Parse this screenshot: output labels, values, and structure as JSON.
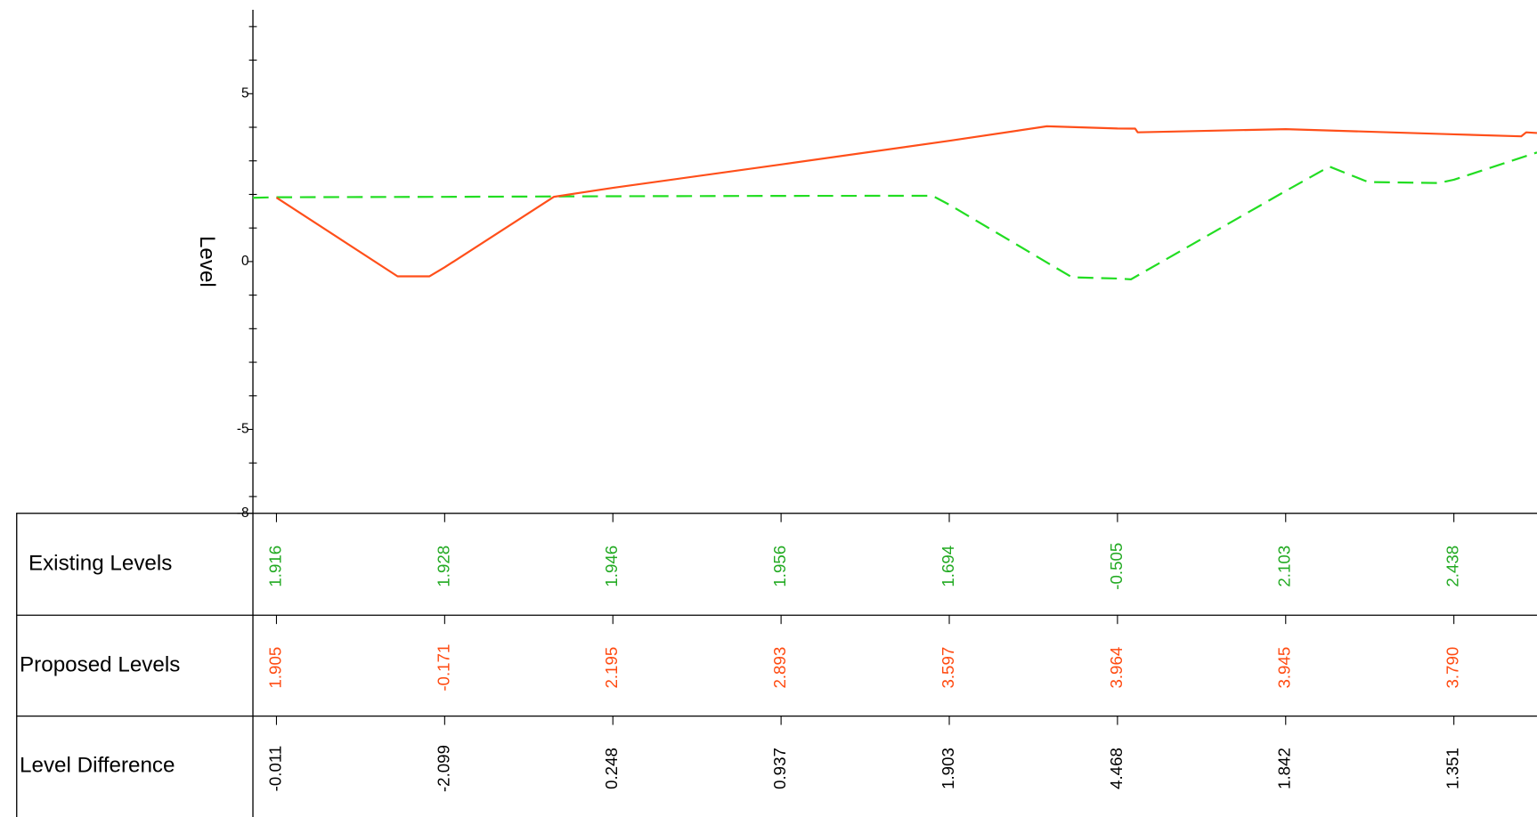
{
  "chart_data": {
    "type": "line",
    "ylabel": "Level",
    "xlim": [
      -1.4,
      74.94
    ],
    "ylim": [
      -7.5,
      7.5
    ],
    "yticks": [
      {
        "value": -7.5,
        "label": "-8"
      },
      -5,
      0,
      5
    ],
    "yminorticks": [
      -7,
      -6,
      -4,
      -3,
      -2,
      -1,
      1,
      2,
      3,
      4,
      6,
      7
    ],
    "series": [
      {
        "name": "Existing Levels",
        "color": "#22dd22",
        "dashed": true,
        "x": [
          -1.4,
          0,
          10,
          20,
          30,
          39,
          40,
          47.3,
          50,
          50.8,
          60,
          62.6,
          64.9,
          69.1,
          70,
          74.94
        ],
        "values": [
          1.9,
          1.916,
          1.928,
          1.946,
          1.956,
          1.96,
          1.694,
          -0.47,
          -0.505,
          -0.53,
          2.103,
          2.83,
          2.37,
          2.34,
          2.438,
          3.25
        ]
      },
      {
        "name": "Proposed Levels",
        "color": "#ff4f1a",
        "dashed": false,
        "x": [
          0,
          7.2,
          9.1,
          10,
          16.5,
          20,
          30,
          40,
          45.8,
          50,
          51.05,
          51.2,
          60,
          70,
          74,
          74.3,
          74.94
        ],
        "values": [
          1.905,
          -0.44,
          -0.44,
          -0.171,
          1.93,
          2.195,
          2.893,
          3.597,
          4.03,
          3.964,
          3.96,
          3.85,
          3.945,
          3.79,
          3.73,
          3.85,
          3.83
        ]
      }
    ],
    "table": {
      "stations": [
        0,
        10,
        20,
        30,
        40,
        50,
        60,
        70
      ],
      "rows": [
        {
          "label": "Existing Levels",
          "color": "#22aa22",
          "values": [
            "1.916",
            "1.928",
            "1.946",
            "1.956",
            "1.694",
            "-0.505",
            "2.103",
            "2.438"
          ]
        },
        {
          "label": "Proposed Levels",
          "color": "#ff4a10",
          "values": [
            "1.905",
            "-0.171",
            "2.195",
            "2.893",
            "3.597",
            "3.964",
            "3.945",
            "3.790"
          ]
        },
        {
          "label": "Level Difference",
          "color": "#000000",
          "values": [
            "-0.011",
            "-2.099",
            "0.248",
            "0.937",
            "1.903",
            "4.468",
            "1.842",
            "1.351"
          ]
        }
      ]
    }
  }
}
